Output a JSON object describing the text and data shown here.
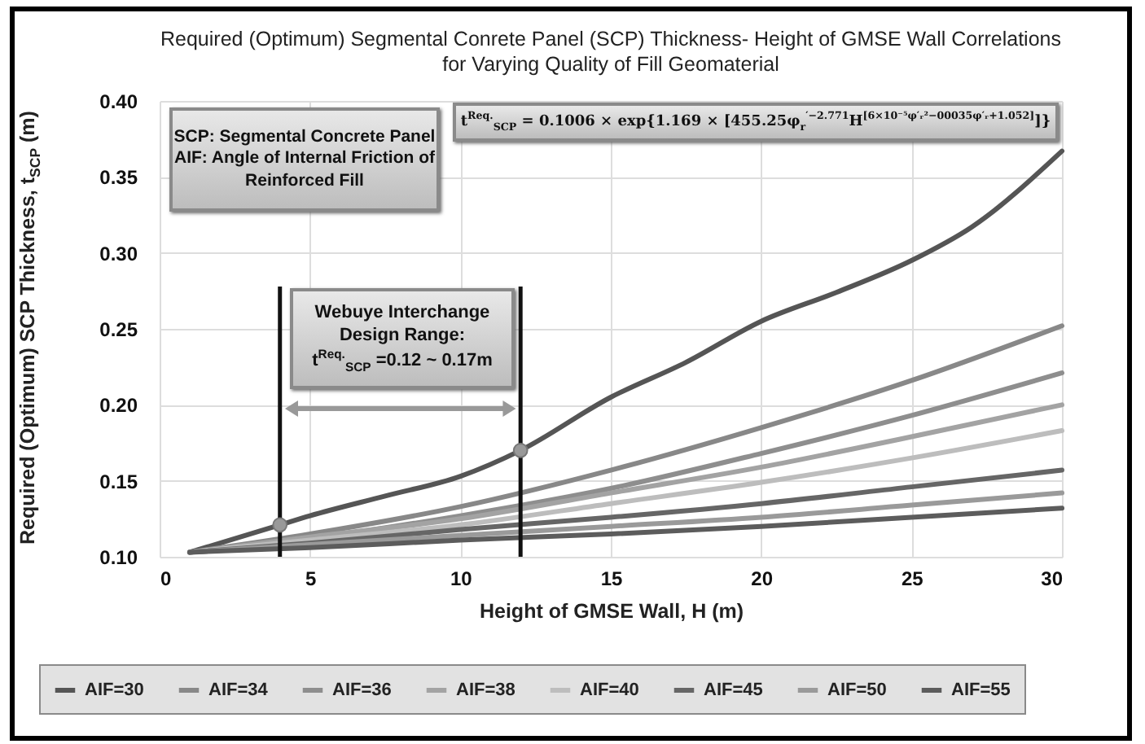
{
  "chart_data": {
    "type": "line",
    "title": "Required (Optimum) Segmental Conrete Panel (SCP) Thickness- Height of GMSE Wall Correlations",
    "subtitle": "for Varying Quality of Fill Geomaterial",
    "xlabel": "Height of GMSE Wall, H (m)",
    "ylabel": "Required (Optimum) SCP Thickness, t$_{SCP}$ (m)",
    "x": [
      1,
      5,
      10,
      15,
      20,
      25,
      30
    ],
    "series": [
      {
        "name": "AIF=30",
        "color": "#555555",
        "x": [
          1,
          4,
          5,
          7.5,
          10,
          12,
          15,
          17.5,
          20,
          22.5,
          25,
          27,
          30
        ],
        "values": [
          0.103,
          0.121,
          0.127,
          0.14,
          0.153,
          0.17,
          0.205,
          0.228,
          0.255,
          0.274,
          0.295,
          0.317,
          0.367
        ]
      },
      {
        "name": "AIF=34",
        "color": "#888888",
        "values": [
          0.103,
          0.115,
          0.133,
          0.157,
          0.185,
          0.216,
          0.252
        ]
      },
      {
        "name": "AIF=36",
        "color": "#8e8e8e",
        "values": [
          0.103,
          0.112,
          0.127,
          0.145,
          0.168,
          0.193,
          0.221
        ]
      },
      {
        "name": "AIF=38",
        "color": "#a3a3a3",
        "values": [
          0.103,
          0.113,
          0.125,
          0.142,
          0.159,
          0.179,
          0.2
        ]
      },
      {
        "name": "AIF=40",
        "color": "#bdbdbd",
        "values": [
          0.103,
          0.111,
          0.121,
          0.135,
          0.149,
          0.165,
          0.183
        ]
      },
      {
        "name": "AIF=45",
        "color": "#666666",
        "values": [
          0.103,
          0.109,
          0.118,
          0.126,
          0.135,
          0.146,
          0.157
        ]
      },
      {
        "name": "AIF=50",
        "color": "#9a9a9a",
        "values": [
          0.103,
          0.108,
          0.114,
          0.12,
          0.126,
          0.134,
          0.142
        ]
      },
      {
        "name": "AIF=55",
        "color": "#5c5c5c",
        "values": [
          0.103,
          0.106,
          0.111,
          0.115,
          0.12,
          0.126,
          0.132
        ]
      },
      {
        "type": "scatter",
        "color": "#999999",
        "x": [
          4,
          12
        ],
        "values": [
          0.121,
          0.17
        ]
      }
    ],
    "ref_lines": [
      {
        "axis": "x",
        "value": 4,
        "color": "#111111"
      },
      {
        "axis": "x",
        "value": 12,
        "color": "#111111"
      }
    ],
    "annotations": [
      "SCP: Segmental Concrete Panel",
      "AIF: Angle of Internal Friction of Reinforced Fill",
      "t$^{Req.}$$_{SCP}$ = 0.1006 × exp{1.169 × [455.25φ$_{r}$$^{′−2.771}$H$^{[6×10⁻⁵φ′ᵣ²−00035φ′ᵣ+1.052]}$]}",
      "Webuye Interchange Design Range:",
      "t$^{Req.}$$_{SCP}$ =0.12 ~ 0.17m"
    ],
    "xlim": [
      0,
      30
    ],
    "xticks": [
      0,
      5,
      10,
      15,
      20,
      25,
      30
    ],
    "ylim": [
      0.1,
      0.4
    ],
    "yticks": [
      {
        "value": 0.1,
        "label": "0.10"
      },
      {
        "value": 0.15,
        "label": "0.15"
      },
      {
        "value": 0.2,
        "label": "0.20"
      },
      {
        "value": 0.25,
        "label": "0.25"
      },
      {
        "value": 0.3,
        "label": "0.30"
      },
      {
        "value": 0.35,
        "label": "0.35"
      },
      {
        "value": 0.4,
        "label": "0.40"
      }
    ],
    "grid": true,
    "legend": "bottom",
    "line_style": "solid"
  }
}
